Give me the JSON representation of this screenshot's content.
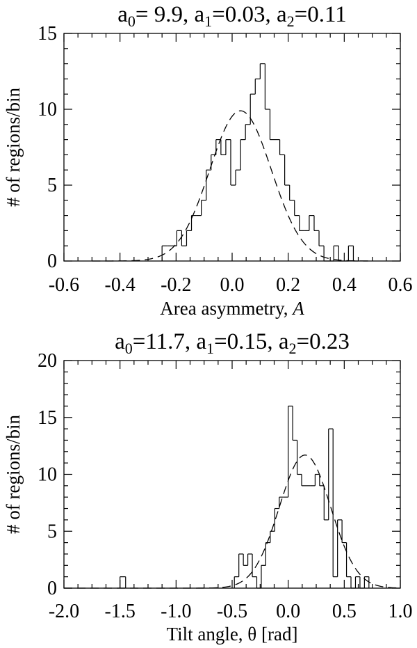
{
  "chart_data": [
    {
      "type": "histogram",
      "title": {
        "prefix": "a",
        "parts": [
          {
            "sub": "0",
            "text": "= 9.9, a"
          },
          {
            "sub": "1",
            "text": "=0.03, a"
          },
          {
            "sub": "2",
            "text": "=0.11"
          }
        ]
      },
      "xlabel": "Area asymmetry, ",
      "xlabel_italic": "A",
      "ylabel": "# of regions/bin",
      "xlim": [
        -0.6,
        0.6
      ],
      "ylim": [
        0,
        15
      ],
      "xticks": [
        -0.6,
        -0.4,
        -0.2,
        0.0,
        0.2,
        0.4,
        0.6
      ],
      "xtick_labels": [
        "-0.6",
        "-0.4",
        "-0.2",
        "0.0",
        "0.2",
        "0.4",
        "0.6"
      ],
      "yticks": [
        0,
        5,
        10,
        15
      ],
      "ytick_labels": [
        "0",
        "5",
        "10",
        "15"
      ],
      "bin_edges": [
        -0.25,
        0.45
      ],
      "bin_width": 0.0175,
      "bin_counts": [
        1,
        1,
        1,
        2,
        1,
        2,
        3,
        3,
        4,
        6,
        7,
        8,
        7,
        8,
        5,
        6,
        8,
        9,
        11,
        12,
        13,
        10,
        8,
        8,
        7,
        5,
        4,
        3,
        2,
        2,
        3,
        2,
        1,
        0,
        0,
        1,
        0,
        0,
        1,
        0
      ],
      "fit": {
        "a0": 9.9,
        "a1": 0.03,
        "a2": 0.11,
        "x_range": [
          -0.5,
          0.5
        ]
      }
    },
    {
      "type": "histogram",
      "title": {
        "prefix": "a",
        "parts": [
          {
            "sub": "0",
            "text": "=11.7, a"
          },
          {
            "sub": "1",
            "text": "=0.15, a"
          },
          {
            "sub": "2",
            "text": "=0.23"
          }
        ]
      },
      "xlabel": "Tilt angle, θ [rad]",
      "xlabel_italic": "",
      "ylabel": "# of regions/bin",
      "xlim": [
        -2.0,
        1.0
      ],
      "ylim": [
        0,
        20
      ],
      "xticks": [
        -2.0,
        -1.5,
        -1.0,
        -0.5,
        0.0,
        0.5,
        1.0
      ],
      "xtick_labels": [
        "-2.0",
        "-1.5",
        "-1.0",
        "-0.5",
        "0.0",
        "0.5",
        "1.0"
      ],
      "yticks": [
        0,
        5,
        10,
        15,
        20
      ],
      "ytick_labels": [
        "0",
        "5",
        "10",
        "15",
        "20"
      ],
      "bins": [
        {
          "x0": -1.5,
          "x1": -1.45,
          "count": 1
        },
        {
          "x0": -0.48,
          "x1": -0.44,
          "count": 1
        },
        {
          "x0": -0.44,
          "x1": -0.4,
          "count": 3
        },
        {
          "x0": -0.4,
          "x1": -0.36,
          "count": 2
        },
        {
          "x0": -0.36,
          "x1": -0.32,
          "count": 3
        },
        {
          "x0": -0.32,
          "x1": -0.28,
          "count": 1
        },
        {
          "x0": -0.28,
          "x1": -0.24,
          "count": 0
        },
        {
          "x0": -0.24,
          "x1": -0.2,
          "count": 2
        },
        {
          "x0": -0.2,
          "x1": -0.16,
          "count": 4
        },
        {
          "x0": -0.16,
          "x1": -0.12,
          "count": 5
        },
        {
          "x0": -0.12,
          "x1": -0.08,
          "count": 7
        },
        {
          "x0": -0.08,
          "x1": -0.04,
          "count": 8
        },
        {
          "x0": -0.04,
          "x1": 0.0,
          "count": 8
        },
        {
          "x0": 0.0,
          "x1": 0.04,
          "count": 16
        },
        {
          "x0": 0.04,
          "x1": 0.08,
          "count": 13
        },
        {
          "x0": 0.08,
          "x1": 0.12,
          "count": 10
        },
        {
          "x0": 0.12,
          "x1": 0.16,
          "count": 9
        },
        {
          "x0": 0.16,
          "x1": 0.2,
          "count": 9
        },
        {
          "x0": 0.2,
          "x1": 0.24,
          "count": 9
        },
        {
          "x0": 0.24,
          "x1": 0.28,
          "count": 10
        },
        {
          "x0": 0.28,
          "x1": 0.32,
          "count": 9
        },
        {
          "x0": 0.32,
          "x1": 0.36,
          "count": 6
        },
        {
          "x0": 0.36,
          "x1": 0.4,
          "count": 14
        },
        {
          "x0": 0.4,
          "x1": 0.44,
          "count": 1
        },
        {
          "x0": 0.44,
          "x1": 0.48,
          "count": 6
        },
        {
          "x0": 0.48,
          "x1": 0.52,
          "count": 4
        },
        {
          "x0": 0.52,
          "x1": 0.56,
          "count": 1
        },
        {
          "x0": 0.56,
          "x1": 0.6,
          "count": 0
        },
        {
          "x0": 0.6,
          "x1": 0.64,
          "count": 1
        },
        {
          "x0": 0.64,
          "x1": 0.68,
          "count": 0
        },
        {
          "x0": 0.68,
          "x1": 0.72,
          "count": 1
        }
      ],
      "fit": {
        "a0": 11.7,
        "a1": 0.15,
        "a2": 0.23,
        "x_range": [
          -2.0,
          1.0
        ]
      }
    }
  ]
}
